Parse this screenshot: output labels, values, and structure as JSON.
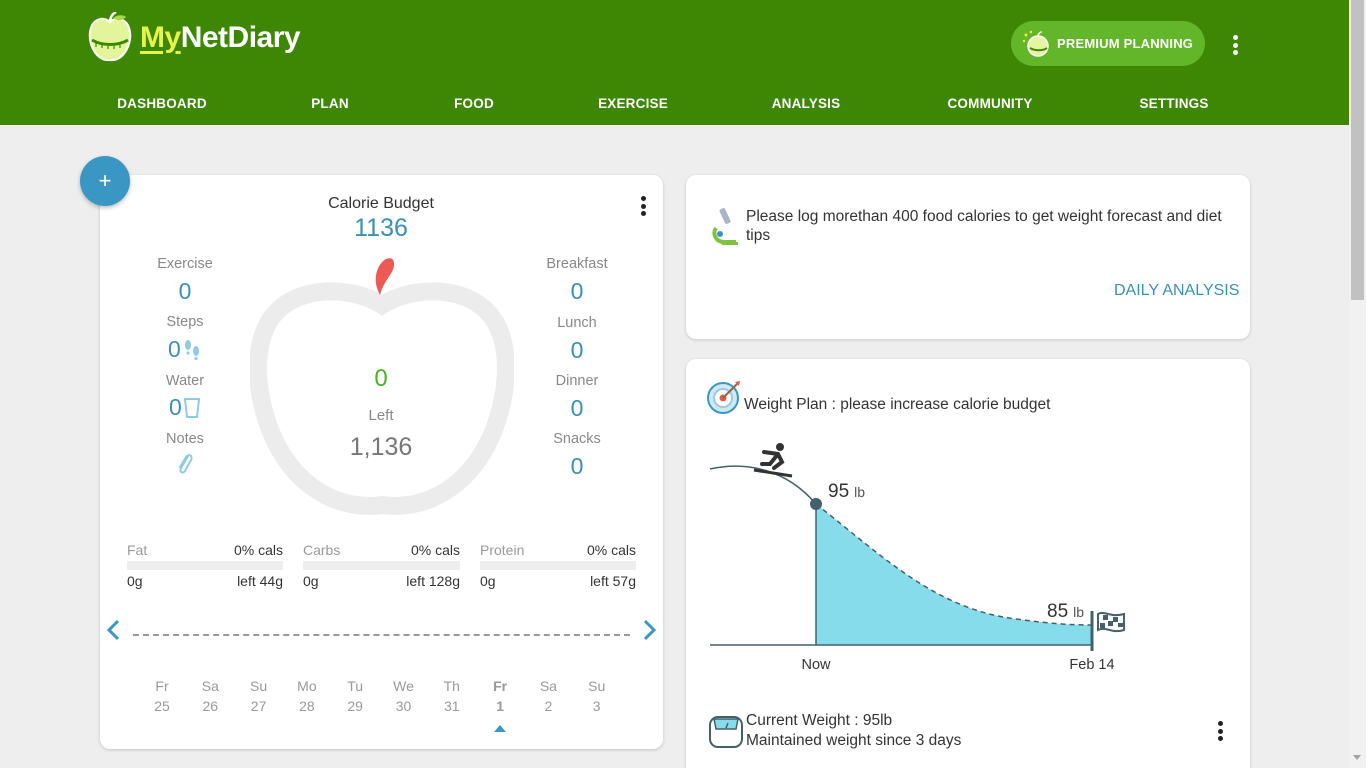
{
  "header": {
    "logo_text_my": "My",
    "logo_text_rest": "NetDiary",
    "premium_label": "PREMIUM PLANNING",
    "nav": [
      "DASHBOARD",
      "PLAN",
      "FOOD",
      "EXERCISE",
      "ANALYSIS",
      "COMMUNITY",
      "SETTINGS"
    ]
  },
  "fab": {
    "label": "+"
  },
  "calories": {
    "title": "Calorie Budget",
    "budget": "1136",
    "center_value": "0",
    "left_label": "Left",
    "left_value": "1,136",
    "left_column": [
      {
        "label": "Exercise",
        "value": "0"
      },
      {
        "label": "Steps",
        "value": "0"
      },
      {
        "label": "Water",
        "value": "0"
      },
      {
        "label": "Notes",
        "value": ""
      }
    ],
    "right_column": [
      {
        "label": "Breakfast",
        "value": "0"
      },
      {
        "label": "Lunch",
        "value": "0"
      },
      {
        "label": "Dinner",
        "value": "0"
      },
      {
        "label": "Snacks",
        "value": "0"
      }
    ],
    "macros": [
      {
        "label": "Fat",
        "pct": "0% cals",
        "grams": "0g",
        "left": "left 44g"
      },
      {
        "label": "Carbs",
        "pct": "0% cals",
        "grams": "0g",
        "left": "left 128g"
      },
      {
        "label": "Protein",
        "pct": "0% cals",
        "grams": "0g",
        "left": "left 57g"
      }
    ],
    "days": [
      {
        "dow": "Fr",
        "date": "25"
      },
      {
        "dow": "Sa",
        "date": "26"
      },
      {
        "dow": "Su",
        "date": "27"
      },
      {
        "dow": "Mo",
        "date": "28"
      },
      {
        "dow": "Tu",
        "date": "29"
      },
      {
        "dow": "We",
        "date": "30"
      },
      {
        "dow": "Th",
        "date": "31"
      },
      {
        "dow": "Fr",
        "date": "1"
      },
      {
        "dow": "Sa",
        "date": "2"
      },
      {
        "dow": "Su",
        "date": "3"
      }
    ],
    "selected_day": "Fr 1"
  },
  "analysis": {
    "message": "Please log morethan 400 food calories to get weight forecast and diet tips",
    "link": "DAILY ANALYSIS"
  },
  "weight": {
    "plan_text": "Weight Plan : please increase calorie budget",
    "current_value": "95",
    "target_value": "85",
    "unit": "lb",
    "x_start": "Now",
    "x_end": "Feb 14",
    "current_weight_text": "Current Weight : 95lb",
    "maintained_text": "Maintained weight since 3 days"
  },
  "colors": {
    "header_green": "#3d8705",
    "premium_green": "#63b52a",
    "accent_blue": "#3a8fb5",
    "forecast_fill": "#86dcea",
    "center_green": "#4caf2a"
  }
}
